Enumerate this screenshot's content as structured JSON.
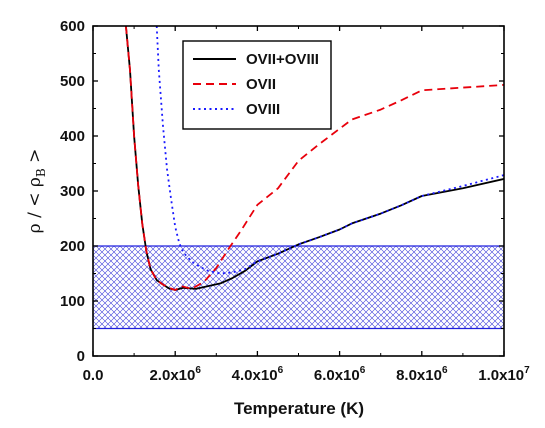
{
  "chart_data": {
    "type": "line",
    "xlabel": "Temperature (K)",
    "ylabel": {
      "text_main": "ρ / < ρ",
      "text_sub": "B",
      "text_end": " >"
    },
    "xlim": [
      0,
      10000000
    ],
    "ylim": [
      0,
      600
    ],
    "x_ticks": [
      {
        "value": 0,
        "label": "0.0"
      },
      {
        "value": 2000000,
        "label": "2.0x10",
        "exp": "6"
      },
      {
        "value": 4000000,
        "label": "4.0x10",
        "exp": "6"
      },
      {
        "value": 6000000,
        "label": "6.0x10",
        "exp": "6"
      },
      {
        "value": 8000000,
        "label": "8.0x10",
        "exp": "6"
      },
      {
        "value": 10000000,
        "label": "1.0x10",
        "exp": "7"
      }
    ],
    "y_ticks": [
      {
        "value": 0,
        "label": "0"
      },
      {
        "value": 100,
        "label": "100"
      },
      {
        "value": 200,
        "label": "200"
      },
      {
        "value": 300,
        "label": "300"
      },
      {
        "value": 400,
        "label": "400"
      },
      {
        "value": 500,
        "label": "500"
      },
      {
        "value": 600,
        "label": "600"
      }
    ],
    "band": {
      "y_low": 50,
      "y_high": 200,
      "color": "#2020dd"
    },
    "legend_position": "top-center",
    "series": [
      {
        "name": "OVII+OVIII",
        "color": "#000000",
        "style": "solid",
        "points": [
          [
            800000,
            600
          ],
          [
            900000,
            520
          ],
          [
            1000000,
            400
          ],
          [
            1100000,
            310
          ],
          [
            1200000,
            240
          ],
          [
            1300000,
            190
          ],
          [
            1400000,
            158
          ],
          [
            1550000,
            138
          ],
          [
            1700000,
            130
          ],
          [
            1850000,
            123
          ],
          [
            2000000,
            120
          ],
          [
            2200000,
            124
          ],
          [
            2500000,
            122
          ],
          [
            2800000,
            127
          ],
          [
            3100000,
            132
          ],
          [
            3400000,
            142
          ],
          [
            3700000,
            155
          ],
          [
            4000000,
            172
          ],
          [
            4500000,
            186
          ],
          [
            5000000,
            203
          ],
          [
            5500000,
            216
          ],
          [
            6000000,
            230
          ],
          [
            6300000,
            241
          ],
          [
            7000000,
            259
          ],
          [
            7500000,
            274
          ],
          [
            8000000,
            291
          ],
          [
            9000000,
            305
          ],
          [
            10000000,
            322
          ]
        ]
      },
      {
        "name": "OVII",
        "color": "#e8000b",
        "style": "dashed",
        "points": [
          [
            800000,
            600
          ],
          [
            900000,
            520
          ],
          [
            1000000,
            400
          ],
          [
            1100000,
            310
          ],
          [
            1200000,
            240
          ],
          [
            1300000,
            190
          ],
          [
            1400000,
            158
          ],
          [
            1550000,
            138
          ],
          [
            1700000,
            130
          ],
          [
            1850000,
            124
          ],
          [
            2000000,
            120
          ],
          [
            2150000,
            127
          ],
          [
            2400000,
            122
          ],
          [
            2700000,
            135
          ],
          [
            3000000,
            160
          ],
          [
            3300000,
            195
          ],
          [
            3600000,
            228
          ],
          [
            4000000,
            275
          ],
          [
            4500000,
            305
          ],
          [
            5000000,
            355
          ],
          [
            5500000,
            385
          ],
          [
            6300000,
            430
          ],
          [
            7000000,
            448
          ],
          [
            7500000,
            465
          ],
          [
            8000000,
            483
          ],
          [
            10000000,
            493
          ]
        ]
      },
      {
        "name": "OVIII",
        "color": "#1a1aff",
        "style": "dotted",
        "points": [
          [
            1550000,
            600
          ],
          [
            1600000,
            520
          ],
          [
            1700000,
            420
          ],
          [
            1800000,
            340
          ],
          [
            1900000,
            285
          ],
          [
            2000000,
            235
          ],
          [
            2100000,
            205
          ],
          [
            2200000,
            188
          ],
          [
            2400000,
            172
          ],
          [
            2600000,
            162
          ],
          [
            2800000,
            155
          ],
          [
            3100000,
            150
          ],
          [
            3400000,
            152
          ],
          [
            3700000,
            158
          ],
          [
            4000000,
            172
          ],
          [
            4500000,
            186
          ],
          [
            5000000,
            203
          ],
          [
            5500000,
            216
          ],
          [
            6000000,
            230
          ],
          [
            6300000,
            241
          ],
          [
            7000000,
            259
          ],
          [
            7500000,
            274
          ],
          [
            8000000,
            291
          ],
          [
            9000000,
            309
          ],
          [
            10000000,
            329
          ]
        ]
      }
    ]
  }
}
